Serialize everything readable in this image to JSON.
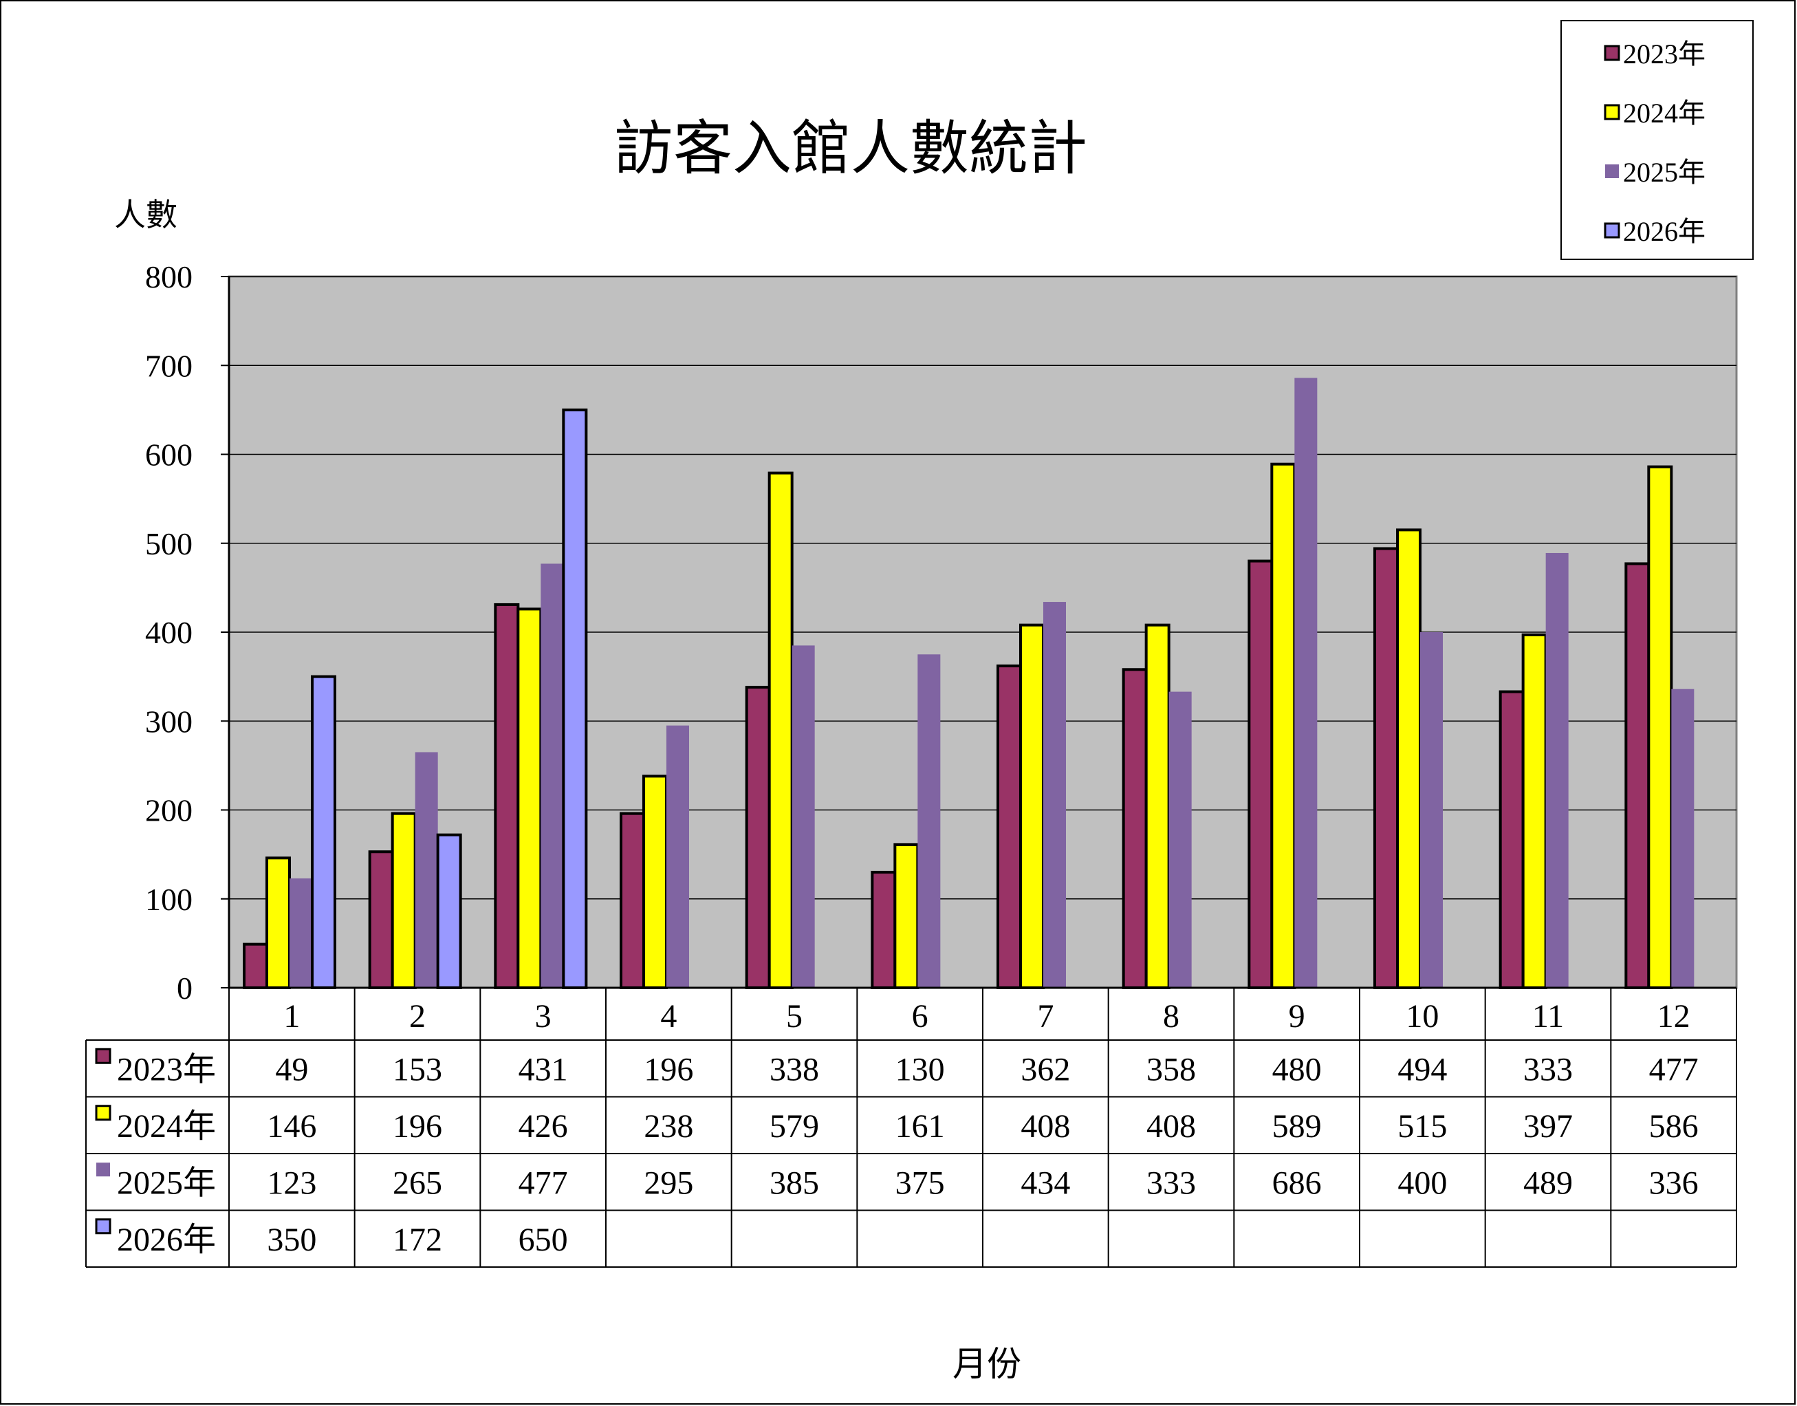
{
  "chart_data": {
    "type": "bar",
    "title": "訪客入館人數統計",
    "ylabel": "人數",
    "xlabel": "月份",
    "ylim": [
      0,
      800
    ],
    "yticks": [
      0,
      100,
      200,
      300,
      400,
      500,
      600,
      700,
      800
    ],
    "categories": [
      "1",
      "2",
      "3",
      "4",
      "5",
      "6",
      "7",
      "8",
      "9",
      "10",
      "11",
      "12"
    ],
    "grid": true,
    "legend_position": "top-right",
    "data_table": true,
    "plot_background": "#c0c0c0",
    "series": [
      {
        "name": "2023年",
        "color": "#993366",
        "outlined": true,
        "values": [
          49,
          153,
          431,
          196,
          338,
          130,
          362,
          358,
          480,
          494,
          333,
          477
        ]
      },
      {
        "name": "2024年",
        "color": "#ffff00",
        "outlined": true,
        "values": [
          146,
          196,
          426,
          238,
          579,
          161,
          408,
          408,
          589,
          515,
          397,
          586
        ]
      },
      {
        "name": "2025年",
        "color": "#8064a2",
        "outlined": false,
        "values": [
          123,
          265,
          477,
          295,
          385,
          375,
          434,
          333,
          686,
          400,
          489,
          336
        ]
      },
      {
        "name": "2026年",
        "color": "#9999ff",
        "outlined": true,
        "values": [
          350,
          172,
          650,
          null,
          null,
          null,
          null,
          null,
          null,
          null,
          null,
          null
        ]
      }
    ]
  }
}
